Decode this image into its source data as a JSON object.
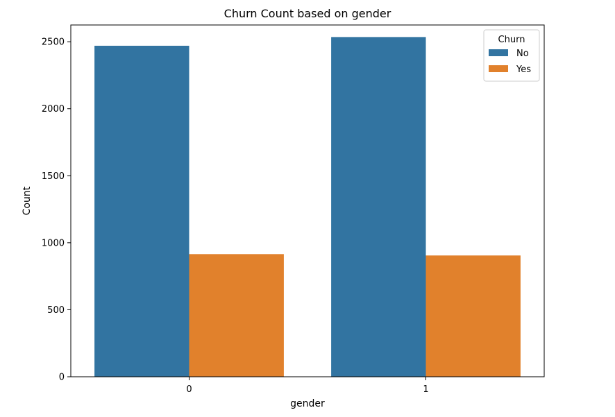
{
  "chart_data": {
    "type": "bar",
    "title": "Churn Count based on gender",
    "xlabel": "gender",
    "ylabel": "Count",
    "categories": [
      "0",
      "1"
    ],
    "series": [
      {
        "name": "No",
        "values": [
          2470,
          2535
        ],
        "color": "#3274a1"
      },
      {
        "name": "Yes",
        "values": [
          915,
          905
        ],
        "color": "#e1812c"
      }
    ],
    "ylim": [
      0,
      2625
    ],
    "yticks": [
      0,
      500,
      1000,
      1500,
      2000,
      2500
    ],
    "legend": {
      "title": "Churn",
      "placement": "top-right"
    },
    "grid": false
  }
}
